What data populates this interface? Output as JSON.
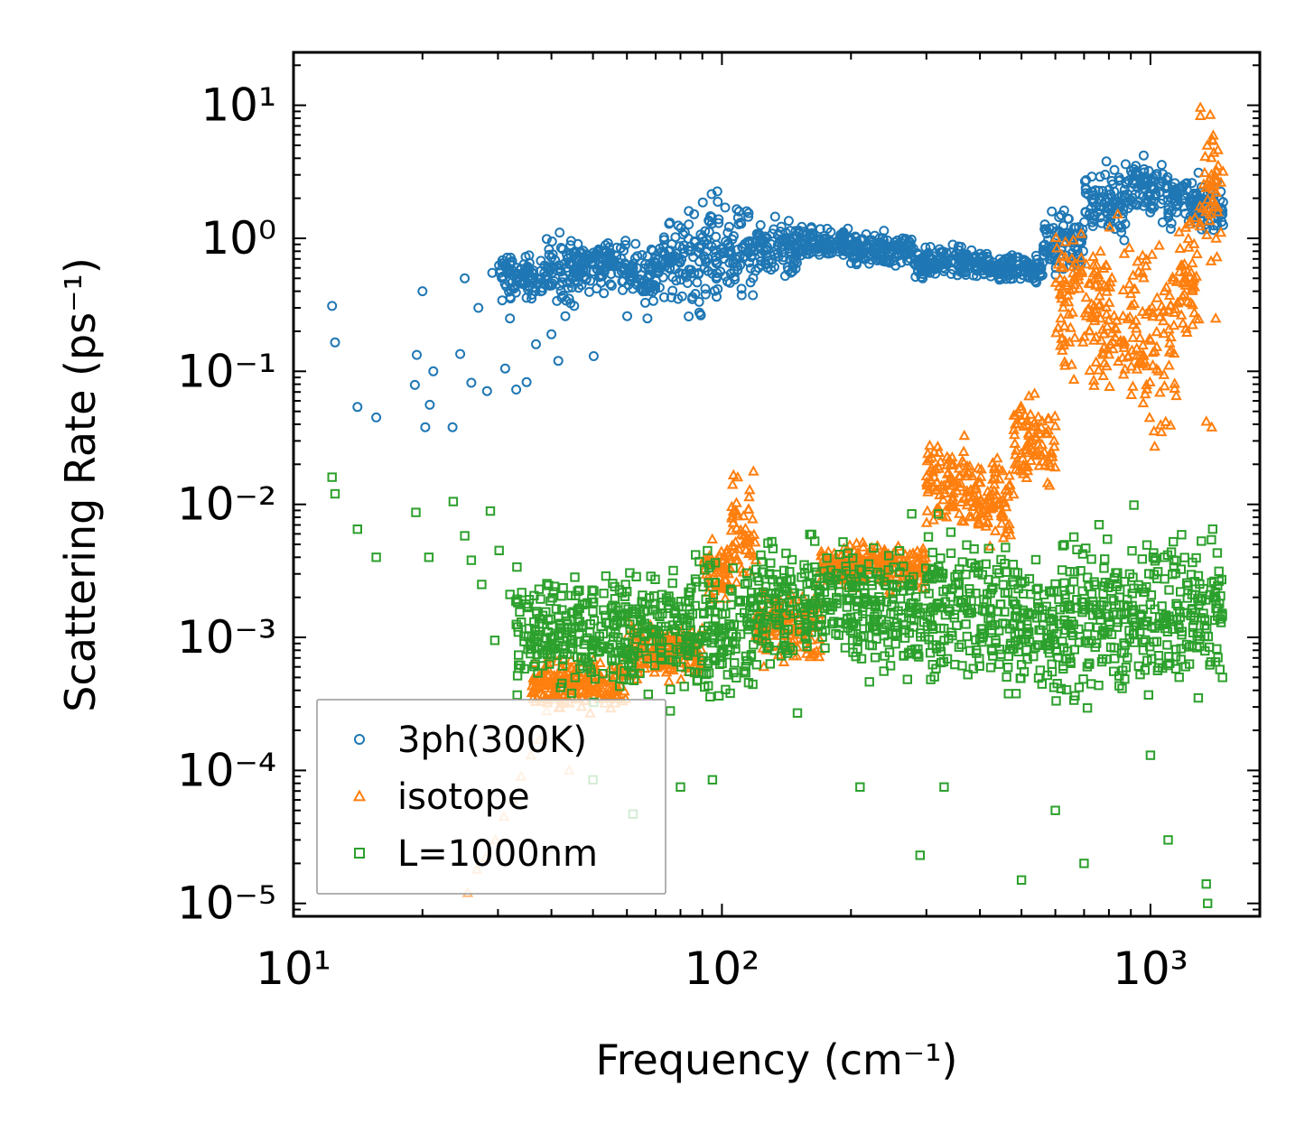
{
  "chart_data": {
    "type": "scatter",
    "title": "",
    "xlabel": "Frequency (cm⁻¹)",
    "ylabel": "Scattering Rate (ps⁻¹)",
    "xscale": "log",
    "yscale": "log",
    "xlim": [
      10,
      1800
    ],
    "ylim": [
      8e-06,
      25
    ],
    "grid": false,
    "legend_position": "lower-left",
    "x_ticks": [
      {
        "value": 10,
        "label": "10¹"
      },
      {
        "value": 100,
        "label": "10²"
      },
      {
        "value": 1000,
        "label": "10³"
      }
    ],
    "y_ticks": [
      {
        "value": 1e-05,
        "label": "10⁻⁵"
      },
      {
        "value": 0.0001,
        "label": "10⁻⁴"
      },
      {
        "value": 0.001,
        "label": "10⁻³"
      },
      {
        "value": 0.01,
        "label": "10⁻²"
      },
      {
        "value": 0.1,
        "label": "10⁻¹"
      },
      {
        "value": 1,
        "label": "10⁰"
      },
      {
        "value": 10,
        "label": "10¹"
      }
    ],
    "series": [
      {
        "name": "3ph(300K)",
        "marker": "circle",
        "color": "#1f77b4",
        "points": [
          [
            12.3,
            0.31
          ],
          [
            12.5,
            0.165
          ],
          [
            14.1,
            0.054
          ],
          [
            15.6,
            0.045
          ],
          [
            19.2,
            0.079
          ],
          [
            19.4,
            0.133
          ],
          [
            20.0,
            0.4
          ],
          [
            20.3,
            0.038
          ],
          [
            20.8,
            0.056
          ],
          [
            21.2,
            0.1
          ],
          [
            23.5,
            0.038
          ],
          [
            24.5,
            0.135
          ],
          [
            25.1,
            0.5
          ],
          [
            26.0,
            0.082
          ],
          [
            27.0,
            0.3
          ],
          [
            28.3,
            0.071
          ],
          [
            29.1,
            0.55
          ],
          [
            31.2,
            0.105
          ],
          [
            32.0,
            0.25
          ],
          [
            33.1,
            0.073
          ],
          [
            35.0,
            0.083
          ],
          [
            36.8,
            0.16
          ],
          [
            40.0,
            0.19
          ],
          [
            41.5,
            0.12
          ],
          [
            43.1,
            0.26
          ],
          [
            45.2,
            0.31
          ],
          [
            50.2,
            0.13
          ],
          [
            51.0,
            0.42
          ],
          [
            55.3,
            0.44
          ],
          [
            60.1,
            0.26
          ],
          [
            67.0,
            0.25
          ],
          [
            70.2,
            0.48
          ]
        ],
        "bands": [
          {
            "x": [
              30,
              38
            ],
            "lo": 0.3,
            "hi": 0.85
          },
          {
            "x": [
              38,
              46
            ],
            "lo": 0.25,
            "hi": 1.3
          },
          {
            "x": [
              46,
              60
            ],
            "lo": 0.35,
            "hi": 1.2
          },
          {
            "x": [
              60,
              72
            ],
            "lo": 0.3,
            "hi": 1.05
          },
          {
            "x": [
              72,
              82
            ],
            "lo": 0.28,
            "hi": 1.8
          },
          {
            "x": [
              82,
              92
            ],
            "lo": 0.18,
            "hi": 2.5
          },
          {
            "x": [
              92,
              102
            ],
            "lo": 0.22,
            "hi": 3.0
          },
          {
            "x": [
              102,
              120
            ],
            "lo": 0.28,
            "hi": 2.2
          },
          {
            "x": [
              120,
              150
            ],
            "lo": 0.4,
            "hi": 1.6
          },
          {
            "x": [
              150,
              200
            ],
            "lo": 0.6,
            "hi": 1.35
          },
          {
            "x": [
              200,
              280
            ],
            "lo": 0.55,
            "hi": 1.2
          },
          {
            "x": [
              280,
              420
            ],
            "lo": 0.45,
            "hi": 0.95
          },
          {
            "x": [
              420,
              560
            ],
            "lo": 0.42,
            "hi": 0.85
          },
          {
            "x": [
              560,
              700
            ],
            "lo": 0.4,
            "hi": 2.0
          },
          {
            "x": [
              700,
              900
            ],
            "lo": 0.8,
            "hi": 4.5
          },
          {
            "x": [
              900,
              1100
            ],
            "lo": 1.2,
            "hi": 5.0
          },
          {
            "x": [
              1100,
              1300
            ],
            "lo": 1.0,
            "hi": 3.5
          },
          {
            "x": [
              1300,
              1480
            ],
            "lo": 1.0,
            "hi": 3.0
          }
        ]
      },
      {
        "name": "isotope",
        "marker": "triangle",
        "color": "#ff7f0e",
        "points": [
          [
            25.5,
            1.2e-05
          ],
          [
            26.8,
            1.8e-05
          ],
          [
            28.1,
            2.2e-05
          ],
          [
            29.6,
            3e-05
          ],
          [
            31.0,
            4.5e-05
          ],
          [
            32.5,
            6e-05
          ],
          [
            34.0,
            9e-05
          ],
          [
            35.8,
            0.00013
          ],
          [
            37.5,
            0.00017
          ],
          [
            39.0,
            0.00028
          ],
          [
            42.0,
            0.00034
          ],
          [
            44.0,
            0.0001
          ],
          [
            46.0,
            0.00055
          ],
          [
            1350,
            0.042
          ],
          [
            1390,
            0.038
          ],
          [
            1420,
            0.25
          ]
        ],
        "bands": [
          {
            "x": [
              36,
              60
            ],
            "lo": 0.00025,
            "hi": 0.0008
          },
          {
            "x": [
              60,
              90
            ],
            "lo": 0.0004,
            "hi": 0.0015
          },
          {
            "x": [
              90,
              105
            ],
            "lo": 0.0015,
            "hi": 0.006
          },
          {
            "x": [
              105,
              120
            ],
            "lo": 0.002,
            "hi": 0.022
          },
          {
            "x": [
              120,
              170
            ],
            "lo": 0.0005,
            "hi": 0.003
          },
          {
            "x": [
              170,
              300
            ],
            "lo": 0.002,
            "hi": 0.006
          },
          {
            "x": [
              300,
              380
            ],
            "lo": 0.005,
            "hi": 0.04
          },
          {
            "x": [
              380,
              480
            ],
            "lo": 0.004,
            "hi": 0.03
          },
          {
            "x": [
              480,
              600
            ],
            "lo": 0.01,
            "hi": 0.08
          },
          {
            "x": [
              600,
              700
            ],
            "lo": 0.05,
            "hi": 2.5
          },
          {
            "x": [
              700,
              900
            ],
            "lo": 0.03,
            "hi": 2.0
          },
          {
            "x": [
              900,
              1150
            ],
            "lo": 0.02,
            "hi": 1.8
          },
          {
            "x": [
              1150,
              1300
            ],
            "lo": 0.1,
            "hi": 2.5
          },
          {
            "x": [
              1300,
              1480
            ],
            "lo": 0.5,
            "hi": 12.0
          }
        ]
      },
      {
        "name": "L=1000nm",
        "marker": "square",
        "color": "#2ca02c",
        "points": [
          [
            12.3,
            0.016
          ],
          [
            12.5,
            0.012
          ],
          [
            14.1,
            0.0065
          ],
          [
            15.6,
            0.004
          ],
          [
            19.3,
            0.0087
          ],
          [
            20.7,
            0.004
          ],
          [
            23.6,
            0.0105
          ],
          [
            25.1,
            0.0058
          ],
          [
            26.0,
            0.0038
          ],
          [
            27.5,
            0.0025
          ],
          [
            28.8,
            0.0089
          ],
          [
            29.5,
            0.00095
          ],
          [
            30.2,
            0.0045
          ],
          [
            32.0,
            0.0021
          ],
          [
            34.0,
            0.0013
          ],
          [
            38.0,
            0.0008
          ],
          [
            42.0,
            0.00042
          ],
          [
            50.0,
            8.5e-05
          ],
          [
            62.0,
            4.7e-05
          ],
          [
            80.0,
            7.5e-05
          ],
          [
            95.0,
            8.5e-05
          ],
          [
            150.0,
            0.00027
          ],
          [
            210.0,
            7.5e-05
          ],
          [
            290.0,
            2.3e-05
          ],
          [
            330.0,
            7.5e-05
          ],
          [
            500.0,
            1.5e-05
          ],
          [
            600.0,
            5e-05
          ],
          [
            700.0,
            2e-05
          ],
          [
            1000.0,
            0.00013
          ],
          [
            1100.0,
            3e-05
          ],
          [
            1350.0,
            1.4e-05
          ],
          [
            1360.0,
            1e-05
          ]
        ],
        "bands": [
          {
            "x": [
              33,
              60
            ],
            "lo": 0.0003,
            "hi": 0.004
          },
          {
            "x": [
              60,
              90
            ],
            "lo": 0.00025,
            "hi": 0.005
          },
          {
            "x": [
              90,
              120
            ],
            "lo": 0.0002,
            "hi": 0.006
          },
          {
            "x": [
              120,
              170
            ],
            "lo": 0.0004,
            "hi": 0.008
          },
          {
            "x": [
              170,
              260
            ],
            "lo": 0.00035,
            "hi": 0.009
          },
          {
            "x": [
              260,
              400
            ],
            "lo": 0.0003,
            "hi": 0.009
          },
          {
            "x": [
              400,
              600
            ],
            "lo": 0.00025,
            "hi": 0.008
          },
          {
            "x": [
              600,
              900
            ],
            "lo": 0.0002,
            "hi": 0.01
          },
          {
            "x": [
              900,
              1200
            ],
            "lo": 0.00025,
            "hi": 0.012
          },
          {
            "x": [
              1200,
              1480
            ],
            "lo": 0.00025,
            "hi": 0.01
          }
        ]
      }
    ]
  }
}
